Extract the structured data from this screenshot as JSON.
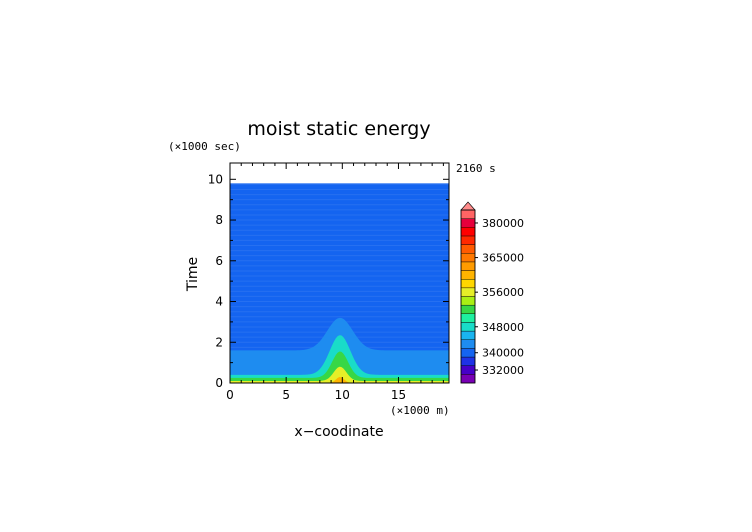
{
  "chart_data": {
    "type": "heatmap",
    "title": "moist static energy",
    "xlabel": "x−coodinate",
    "ylabel": "Time",
    "x_unit": "(×1000 m)",
    "y_unit": "(×1000 sec)",
    "time_stamp": "2160 s",
    "xlim": [
      0,
      19.5
    ],
    "ylim": [
      0,
      10.8
    ],
    "x_ticks": [
      0,
      5,
      10,
      15
    ],
    "y_ticks": [
      0,
      2,
      4,
      6,
      8,
      10
    ],
    "x_tick_labels": [
      "0",
      "5",
      "10",
      "15"
    ],
    "y_tick_labels": [
      "0",
      "2",
      "4",
      "6",
      "8",
      "10"
    ],
    "data_y_max": 9.8,
    "background_value": 340000,
    "contours": [
      {
        "value": 344000,
        "color": "#1e8cf0",
        "base_height": 1.6,
        "peak_height": 3.2,
        "peak_x": 9.8,
        "width": 1.6
      },
      {
        "value": 348000,
        "color": "#19dcc8",
        "base_height": 0.4,
        "peak_height": 2.35,
        "peak_x": 9.8,
        "width": 1.3
      },
      {
        "value": 352000,
        "color": "#37d746",
        "base_height": 0.25,
        "peak_height": 1.55,
        "peak_x": 9.8,
        "width": 1.0
      },
      {
        "value": 356000,
        "color": "#e6ef28",
        "base_height": 0.1,
        "peak_height": 0.8,
        "peak_x": 9.8,
        "width": 0.8
      },
      {
        "value": 360000,
        "color": "#ffb400",
        "base_height": 0.0,
        "peak_height": 0.3,
        "peak_x": 9.8,
        "width": 0.5
      }
    ],
    "colorbar": {
      "labels": [
        "380000",
        "365000",
        "356000",
        "348000",
        "340000",
        "332000"
      ],
      "levels": [
        {
          "value": 328000,
          "color": "#7800b4"
        },
        {
          "value": 332000,
          "color": "#4600c8"
        },
        {
          "value": 336000,
          "color": "#1e32e6"
        },
        {
          "value": 340000,
          "color": "#1464f0"
        },
        {
          "value": 344000,
          "color": "#1e8cf0"
        },
        {
          "value": 346000,
          "color": "#19b4f0"
        },
        {
          "value": 348000,
          "color": "#19dcc8"
        },
        {
          "value": 350000,
          "color": "#1ef0a0"
        },
        {
          "value": 352000,
          "color": "#37d746"
        },
        {
          "value": 354000,
          "color": "#aaf014"
        },
        {
          "value": 356000,
          "color": "#e6ef28"
        },
        {
          "value": 358000,
          "color": "#ffd700"
        },
        {
          "value": 360000,
          "color": "#ffb400"
        },
        {
          "value": 362000,
          "color": "#ff9b00"
        },
        {
          "value": 365000,
          "color": "#ff7800"
        },
        {
          "value": 368000,
          "color": "#ff5a00"
        },
        {
          "value": 372000,
          "color": "#ff2800"
        },
        {
          "value": 376000,
          "color": "#ff0000"
        },
        {
          "value": 380000,
          "color": "#e6003c"
        },
        {
          "value": 384000,
          "color": "#ff6464"
        }
      ],
      "overflow_color": "#ff8c8c"
    }
  }
}
